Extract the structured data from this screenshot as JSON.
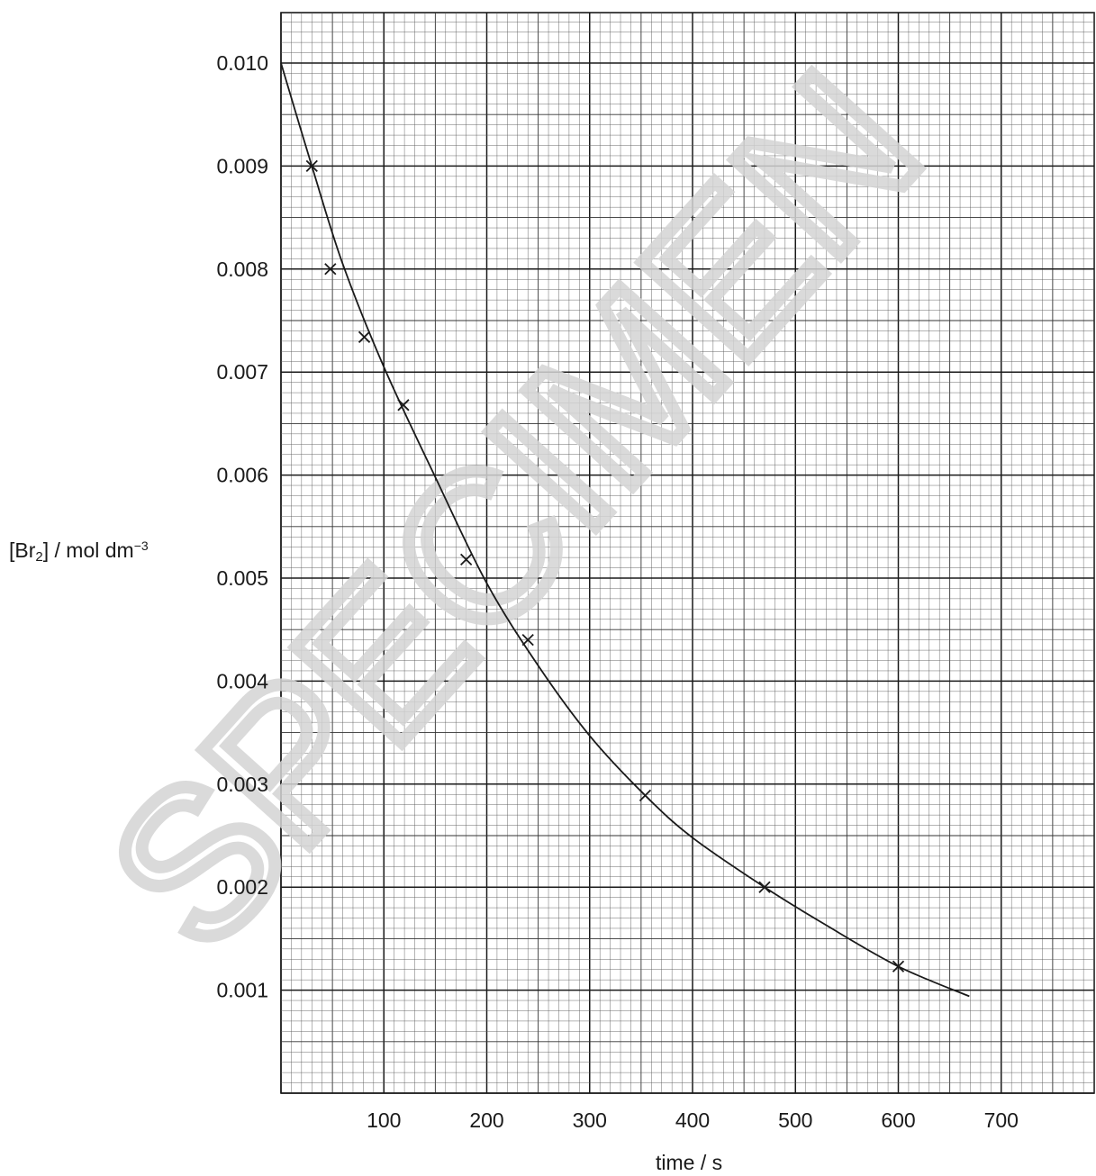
{
  "chart_data": {
    "type": "scatter",
    "ylabel": {
      "prefix": "[Br",
      "sub": "2",
      "mid": "] / mol dm",
      "sup": "−3"
    },
    "xlabel": "time / s",
    "xlim": [
      0,
      790
    ],
    "ylim": [
      0,
      0.0105
    ],
    "x_ticks": [
      100,
      200,
      300,
      400,
      500,
      600,
      700
    ],
    "y_ticks": [
      0.001,
      0.002,
      0.003,
      0.004,
      0.005,
      0.006,
      0.007,
      0.008,
      0.009,
      0.01
    ],
    "y_tick_labels": [
      "0.001",
      "0.002",
      "0.003",
      "0.004",
      "0.005",
      "0.006",
      "0.007",
      "0.008",
      "0.009",
      "0.010"
    ],
    "grid": true,
    "series": [
      {
        "points": [
          {
            "x": 30,
            "y": 0.009
          },
          {
            "x": 48,
            "y": 0.008
          },
          {
            "x": 81,
            "y": 0.00734
          },
          {
            "x": 119,
            "y": 0.00668
          },
          {
            "x": 180,
            "y": 0.00518
          },
          {
            "x": 240,
            "y": 0.0044
          },
          {
            "x": 354,
            "y": 0.00289
          },
          {
            "x": 470,
            "y": 0.002
          },
          {
            "x": 600,
            "y": 0.00123
          }
        ],
        "marker": "cross",
        "color": "#1a1a1a"
      }
    ],
    "curve": {
      "description_free_fit": true,
      "points": [
        [
          0,
          0.01
        ],
        [
          30,
          0.009
        ],
        [
          60,
          0.00805
        ],
        [
          100,
          0.00705
        ],
        [
          150,
          0.00598
        ],
        [
          200,
          0.00495
        ],
        [
          250,
          0.00415
        ],
        [
          300,
          0.00347
        ],
        [
          354,
          0.00289
        ],
        [
          400,
          0.00248
        ],
        [
          470,
          0.002
        ],
        [
          530,
          0.00163
        ],
        [
          600,
          0.00123
        ],
        [
          669,
          0.00094
        ]
      ],
      "color": "#1a1a1a"
    }
  },
  "watermark": "SPECIMEN"
}
